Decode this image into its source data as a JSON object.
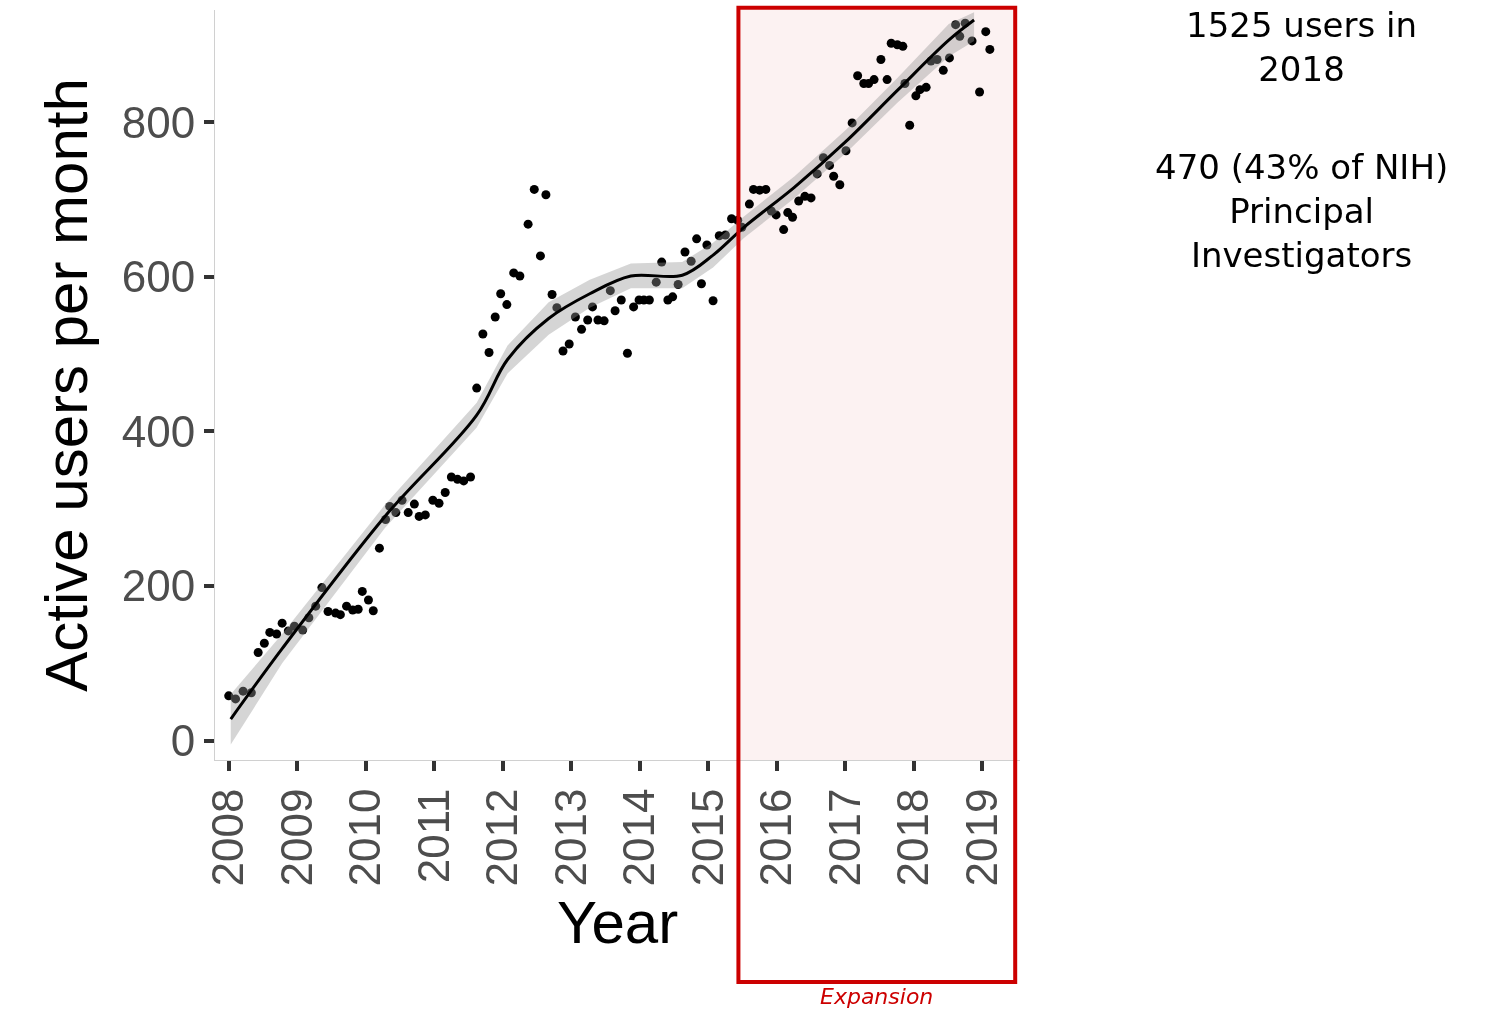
{
  "chart_data": {
    "type": "scatter",
    "xlabel": "Year",
    "ylabel": "Active users per month",
    "xlim": [
      2007.8,
      2019.55
    ],
    "xticks": [
      2008,
      2009,
      2010,
      2011,
      2012,
      2013,
      2014,
      2015,
      2016,
      2017,
      2018,
      2019
    ],
    "ylim": [
      -25,
      945
    ],
    "yticks": [
      0,
      200,
      400,
      600,
      800
    ],
    "grid": false,
    "marker": "circle",
    "series": [
      {
        "color": "#000000",
        "x": [
          2008.0,
          2008.1,
          2008.21,
          2008.33,
          2008.43,
          2008.52,
          2008.6,
          2008.7,
          2008.78,
          2008.87,
          2008.96,
          2009.08,
          2009.17,
          2009.27,
          2009.36,
          2009.45,
          2009.56,
          2009.63,
          2009.72,
          2009.81,
          2009.89,
          2009.95,
          2010.04,
          2010.11,
          2010.2,
          2010.29,
          2010.35,
          2010.44,
          2010.53,
          2010.62,
          2010.71,
          2010.78,
          2010.87,
          2010.98,
          2011.07,
          2011.16,
          2011.25,
          2011.34,
          2011.43,
          2011.53,
          2011.62,
          2011.71,
          2011.8,
          2011.89,
          2011.97,
          2012.06,
          2012.16,
          2012.25,
          2012.37,
          2012.46,
          2012.55,
          2012.63,
          2012.72,
          2012.79,
          2012.88,
          2012.97,
          2013.06,
          2013.15,
          2013.24,
          2013.31,
          2013.39,
          2013.48,
          2013.57,
          2013.64,
          2013.73,
          2013.82,
          2013.91,
          2013.99,
          2014.06,
          2014.14,
          2014.24,
          2014.32,
          2014.41,
          2014.48,
          2014.56,
          2014.66,
          2014.75,
          2014.83,
          2014.9,
          2014.98,
          2015.07,
          2015.16,
          2015.25,
          2015.34,
          2015.43,
          2015.49,
          2015.6,
          2015.66,
          2015.75,
          2015.84,
          2015.92,
          2015.99,
          2016.1,
          2016.16,
          2016.23,
          2016.32,
          2016.41,
          2016.5,
          2016.59,
          2016.68,
          2016.77,
          2016.83,
          2016.92,
          2017.01,
          2017.1,
          2017.18,
          2017.27,
          2017.34,
          2017.42,
          2017.52,
          2017.61,
          2017.67,
          2017.76,
          2017.84,
          2017.87,
          2017.94,
          2018.03,
          2018.09,
          2018.18,
          2018.25,
          2018.34,
          2018.43,
          2018.52,
          2018.61,
          2018.67,
          2018.75,
          2018.85,
          2018.96,
          2019.05,
          2019.11
        ],
        "values": [
          58,
          54,
          64,
          62,
          114,
          126,
          140,
          138,
          152,
          142,
          148,
          143,
          159,
          174,
          198,
          167,
          165,
          163,
          174,
          169,
          170,
          193,
          182,
          168,
          249,
          286,
          303,
          295,
          311,
          295,
          306,
          290,
          292,
          311,
          307,
          321,
          341,
          338,
          336,
          341,
          456,
          526,
          502,
          548,
          578,
          564,
          605,
          601,
          668,
          713,
          627,
          706,
          577,
          560,
          504,
          513,
          548,
          532,
          544,
          561,
          544,
          543,
          582,
          556,
          570,
          501,
          561,
          570,
          570,
          570,
          593,
          619,
          570,
          574,
          590,
          632,
          620,
          649,
          591,
          641,
          569,
          653,
          654,
          675,
          673,
          664,
          694,
          713,
          712,
          713,
          685,
          680,
          661,
          683,
          677,
          698,
          704,
          702,
          733,
          754,
          744,
          730,
          719,
          763,
          799,
          860,
          850,
          850,
          855,
          881,
          855,
          902,
          900,
          898,
          850,
          796,
          834,
          842,
          845,
          879,
          881,
          867,
          883,
          926,
          911,
          928,
          905,
          839,
          917,
          894
        ]
      },
      {
        "type": "line",
        "color": "#000000",
        "marker": "none",
        "line_style": "solid",
        "x": [
          2008.03,
          2008.78,
          2010.28,
          2011.62,
          2012.07,
          2012.67,
          2013.27,
          2013.87,
          2014.62,
          2015.07,
          2015.52,
          2016.26,
          2017.01,
          2017.76,
          2018.51,
          2018.88
        ],
        "values": [
          28,
          119,
          290,
          421,
          493,
          546,
          578,
          601,
          602,
          628,
          664,
          716,
          775,
          841,
          906,
          932
        ],
        "lower": [
          -5,
          100,
          275,
          405,
          475,
          525,
          560,
          585,
          585,
          612,
          650,
          702,
          760,
          825,
          885,
          905
        ],
        "upper": [
          60,
          138,
          305,
          437,
          511,
          567,
          596,
          617,
          619,
          644,
          678,
          730,
          790,
          857,
          927,
          942
        ]
      }
    ],
    "bands": [
      {
        "axis": "x",
        "from": 2015.44,
        "to": 2019.48,
        "label": "Expansion",
        "color": "#cc0000"
      }
    ],
    "annotations": [
      "1525 users in\n2018",
      "470 (43% of NIH)\nPrincipal\nInvestigators"
    ]
  }
}
